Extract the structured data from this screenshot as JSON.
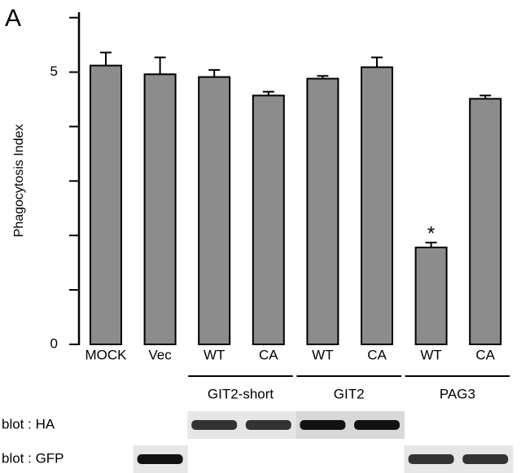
{
  "chart_data": {
    "type": "bar",
    "panel_label": "A",
    "ylabel": "Phagocytosis Index",
    "categories": [
      "MOCK",
      "Vec",
      "WT",
      "CA",
      "WT",
      "CA",
      "WT",
      "CA"
    ],
    "values": [
      5.12,
      4.96,
      4.91,
      4.57,
      4.88,
      5.09,
      1.78,
      4.51
    ],
    "errors": [
      0.24,
      0.31,
      0.13,
      0.07,
      0.05,
      0.18,
      0.09,
      0.06
    ],
    "color": "#8c8c8c",
    "ylim": [
      0,
      6.1
    ],
    "yticks": [
      0,
      5
    ],
    "minor_yticks": [
      1,
      2,
      3,
      4,
      6
    ],
    "groups": [
      {
        "label": "GIT2-short",
        "first": 2,
        "last": 3
      },
      {
        "label": "GIT2",
        "first": 4,
        "last": 5
      },
      {
        "label": "PAG3",
        "first": 6,
        "last": 7
      }
    ],
    "annotations": [
      {
        "text": "*",
        "index": 6
      }
    ],
    "blots": [
      {
        "label": "blot : HA"
      },
      {
        "label": "blot : GFP"
      }
    ]
  }
}
